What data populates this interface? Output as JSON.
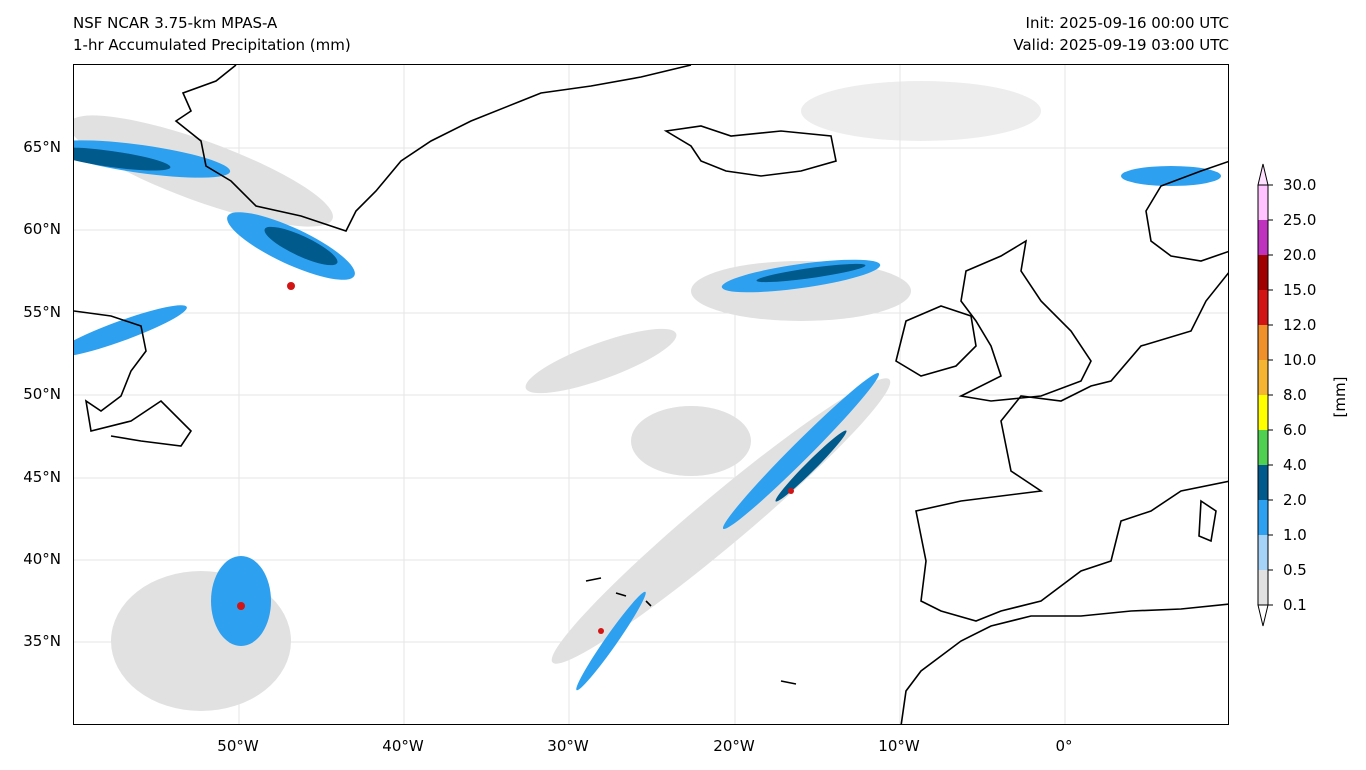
{
  "title": {
    "left_line1": "NSF NCAR 3.75-km MPAS-A",
    "left_line2": "1-hr Accumulated Precipitation (mm)",
    "right_line1": "Init: 2025-09-16 00:00 UTC",
    "right_line2": "Valid: 2025-09-19 03:00 UTC"
  },
  "chart_data": {
    "type": "heatmap",
    "title": "1-hr Accumulated Precipitation (mm)",
    "x_ticks": [
      "50°W",
      "40°W",
      "30°W",
      "20°W",
      "10°W",
      "0°"
    ],
    "x_tick_values": [
      -50,
      -40,
      -30,
      -20,
      -10,
      0
    ],
    "y_ticks": [
      "65°N",
      "60°N",
      "55°N",
      "50°N",
      "45°N",
      "40°N",
      "35°N"
    ],
    "y_tick_values": [
      65,
      60,
      55,
      50,
      45,
      40,
      35
    ],
    "xlim": [
      -60,
      10
    ],
    "ylim": [
      30,
      69.5
    ],
    "colorbar": {
      "unit": "[mm]",
      "levels": [
        "0.1",
        "0.5",
        "1.0",
        "2.0",
        "4.0",
        "6.0",
        "8.0",
        "10.0",
        "12.0",
        "15.0",
        "20.0",
        "25.0",
        "30.0"
      ],
      "colors": [
        "#e1e1e1",
        "#a5d2f7",
        "#2ea0f0",
        "#005a8c",
        "#50d050",
        "#ffff00",
        "#f5b432",
        "#f0902a",
        "#d21414",
        "#a00000",
        "#be32be",
        "#ffc3ff"
      ],
      "extend": "both"
    }
  }
}
